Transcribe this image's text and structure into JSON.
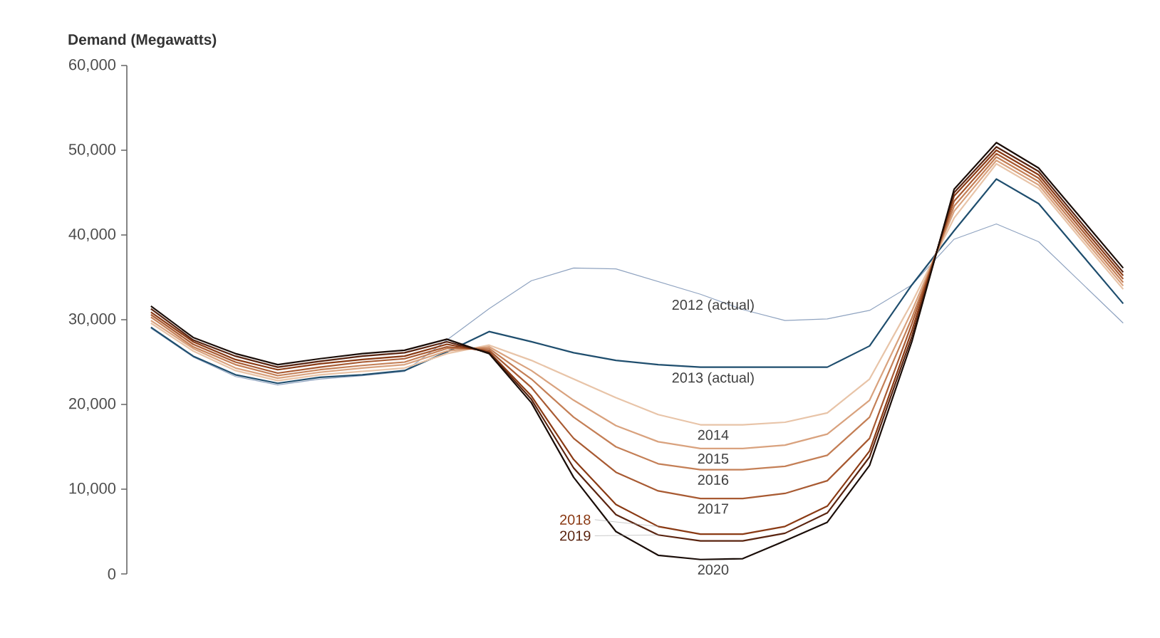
{
  "chart_data": {
    "type": "line",
    "ylabel": "Demand (Megawatts)",
    "categories": [
      null,
      null,
      null,
      null,
      null,
      null,
      null,
      null,
      null,
      null,
      null,
      null,
      null,
      null,
      null,
      null,
      null,
      null,
      null,
      null,
      null,
      null,
      null,
      null
    ],
    "ylim": [
      0,
      60000
    ],
    "yticks": [
      {
        "value": 0,
        "label": "0"
      },
      {
        "value": 10000,
        "label": "10,000"
      },
      {
        "value": 20000,
        "label": "20,000"
      },
      {
        "value": 30000,
        "label": "30,000"
      },
      {
        "value": 40000,
        "label": "40,000"
      },
      {
        "value": 50000,
        "label": "50,000"
      },
      {
        "value": 60000,
        "label": "60,000"
      }
    ],
    "series": [
      {
        "name": "2012 (actual)",
        "color": "#8fa3c0",
        "values": [
          29000,
          25600,
          23300,
          22300,
          23000,
          23400,
          23900,
          27600,
          31300,
          34600,
          36100,
          36000,
          34500,
          33000,
          31200,
          29900,
          30100,
          31100,
          34100,
          39500,
          41300,
          39200,
          34400,
          29600
        ]
      },
      {
        "name": "2013 (actual)",
        "color": "#1f4e6e",
        "values": [
          29100,
          25700,
          23500,
          22500,
          23200,
          23500,
          24000,
          26200,
          28600,
          27400,
          26100,
          25200,
          24700,
          24400,
          24400,
          24400,
          24400,
          26900,
          34100,
          40500,
          46600,
          43700,
          37800,
          31900
        ]
      },
      {
        "name": "2014",
        "color": "#e8c4a8",
        "values": [
          29600,
          26300,
          24000,
          22800,
          23500,
          23900,
          24300,
          26000,
          27000,
          25200,
          23000,
          20800,
          18800,
          17600,
          17600,
          17900,
          19000,
          23000,
          32000,
          42000,
          48400,
          45500,
          39500,
          33600
        ]
      },
      {
        "name": "2015",
        "color": "#d9a27e",
        "values": [
          29900,
          26600,
          24300,
          23100,
          23800,
          24300,
          24700,
          26300,
          26800,
          24000,
          20500,
          17500,
          15600,
          14800,
          14800,
          15200,
          16500,
          20500,
          31000,
          42800,
          48800,
          45900,
          39900,
          34000
        ]
      },
      {
        "name": "2016",
        "color": "#c47f56",
        "values": [
          30300,
          26800,
          24700,
          23400,
          24100,
          24600,
          25000,
          26600,
          26600,
          23000,
          18500,
          15000,
          13000,
          12300,
          12300,
          12700,
          14000,
          18500,
          30200,
          43400,
          49200,
          46300,
          40300,
          34400
        ]
      },
      {
        "name": "2017",
        "color": "#a85a32",
        "values": [
          30600,
          27100,
          25000,
          23700,
          24400,
          25000,
          25400,
          26800,
          26400,
          22000,
          16000,
          12000,
          9800,
          8900,
          8900,
          9500,
          11000,
          16000,
          29500,
          44000,
          49600,
          46700,
          40700,
          34800
        ]
      },
      {
        "name": "2018",
        "color": "#8a3a14",
        "values": [
          30900,
          27400,
          25300,
          24100,
          24800,
          25300,
          25700,
          27100,
          26200,
          21000,
          13500,
          8200,
          5600,
          4700,
          4700,
          5600,
          8000,
          14500,
          28700,
          44600,
          50000,
          47100,
          41100,
          35200
        ]
      },
      {
        "name": "2019",
        "color": "#5a2410",
        "values": [
          31300,
          27600,
          25700,
          24400,
          25100,
          25700,
          26100,
          27400,
          26100,
          20600,
          12500,
          7000,
          4600,
          3900,
          3900,
          4800,
          7200,
          13800,
          28000,
          45000,
          50400,
          47500,
          41500,
          35600
        ]
      },
      {
        "name": "2020",
        "color": "#1a0d08",
        "values": [
          31600,
          27900,
          26000,
          24700,
          25400,
          26000,
          26400,
          27700,
          26000,
          20200,
          11400,
          5000,
          2200,
          1700,
          1800,
          3900,
          6100,
          12800,
          27400,
          45400,
          50900,
          47900,
          42000,
          36100
        ]
      }
    ]
  }
}
